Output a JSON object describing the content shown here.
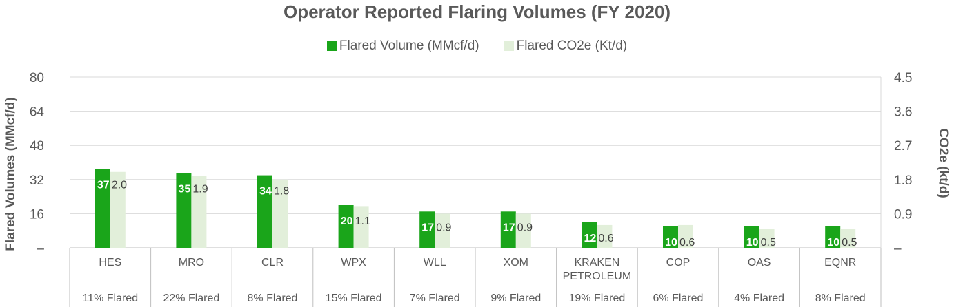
{
  "chart_data": {
    "type": "bar",
    "title": "Operator Reported Flaring Volumes (FY 2020)",
    "ylabel": "Flared Volumes (MMcf/d)",
    "y2label": "CO2e (kt/d)",
    "ylim": [
      0,
      80
    ],
    "y2lim": [
      0,
      4.5
    ],
    "yticks": [
      "–",
      "16",
      "32",
      "48",
      "64",
      "80"
    ],
    "y2ticks": [
      "–",
      "0.9",
      "1.8",
      "2.7",
      "3.6",
      "4.5"
    ],
    "grid": true,
    "legend_position": "top",
    "categories": [
      "HES",
      "MRO",
      "CLR",
      "WPX",
      "WLL",
      "XOM",
      "KRAKEN PETROLEUM",
      "COP",
      "OAS",
      "EQNR"
    ],
    "category_lines": [
      [
        "HES"
      ],
      [
        "MRO"
      ],
      [
        "CLR"
      ],
      [
        "WPX"
      ],
      [
        "WLL"
      ],
      [
        "XOM"
      ],
      [
        "KRAKEN",
        "PETROLEUM"
      ],
      [
        "COP"
      ],
      [
        "OAS"
      ],
      [
        "EQNR"
      ]
    ],
    "subcategories": [
      "11% Flared",
      "22% Flared",
      "8% Flared",
      "15% Flared",
      "7% Flared",
      "9% Flared",
      "19% Flared",
      "6% Flared",
      "4% Flared",
      "8% Flared"
    ],
    "series": [
      {
        "name": "Flared Volume (MMcf/d)",
        "axis": "left",
        "color": "#1aa51a",
        "values": [
          37,
          35,
          34,
          20,
          17,
          17,
          12,
          10,
          10,
          10
        ],
        "labels": [
          "37",
          "35",
          "34",
          "20",
          "17",
          "17",
          "12",
          "10",
          "10",
          "10"
        ]
      },
      {
        "name": "Flared CO2e (Kt/d)",
        "axis": "right",
        "color": "#e2efda",
        "values": [
          2.0,
          1.9,
          1.8,
          1.1,
          0.9,
          0.9,
          0.6,
          0.6,
          0.5,
          0.5
        ],
        "labels": [
          "2.0",
          "1.9",
          "1.8",
          "1.1",
          "0.9",
          "0.9",
          "0.6",
          "0.6",
          "0.5",
          "0.5"
        ]
      }
    ]
  }
}
